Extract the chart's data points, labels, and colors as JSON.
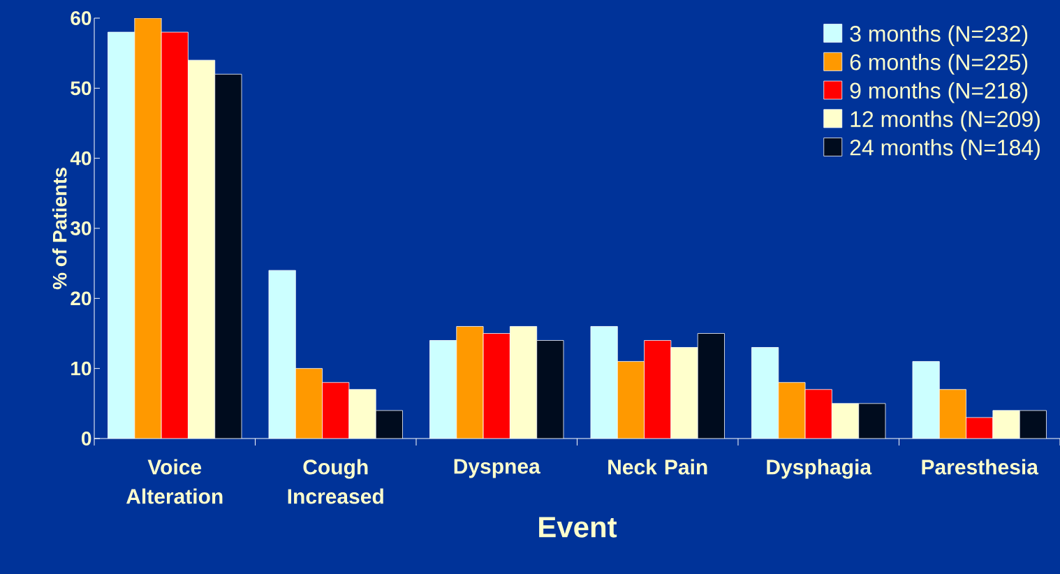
{
  "chart_data": {
    "type": "bar",
    "xlabel": "Event",
    "ylabel": "% of Patients",
    "categories": [
      "Voice Alteration",
      "Cough Increased",
      "Dyspnea",
      "Neck Pain",
      "Dysphagia",
      "Paresthesia"
    ],
    "series": [
      {
        "name": "3 months (N=232)",
        "color": "#ccffff",
        "values": [
          58,
          24,
          14,
          16,
          13,
          11
        ]
      },
      {
        "name": "6 months (N=225)",
        "color": "#ff9900",
        "values": [
          60,
          10,
          16,
          11,
          8,
          7
        ]
      },
      {
        "name": "9 months (N=218)",
        "color": "#ff0000",
        "values": [
          58,
          8,
          15,
          14,
          7,
          3
        ]
      },
      {
        "name": "12 months (N=209)",
        "color": "#ffffcc",
        "values": [
          54,
          7,
          16,
          13,
          5,
          4
        ]
      },
      {
        "name": "24 months (N=184)",
        "color": "#000c1e",
        "values": [
          52,
          4,
          14,
          15,
          5,
          4
        ]
      }
    ],
    "ylim": [
      0,
      60
    ],
    "yticks": [
      0,
      10,
      20,
      30,
      40,
      50,
      60
    ],
    "grid": false,
    "legend": "top right"
  }
}
